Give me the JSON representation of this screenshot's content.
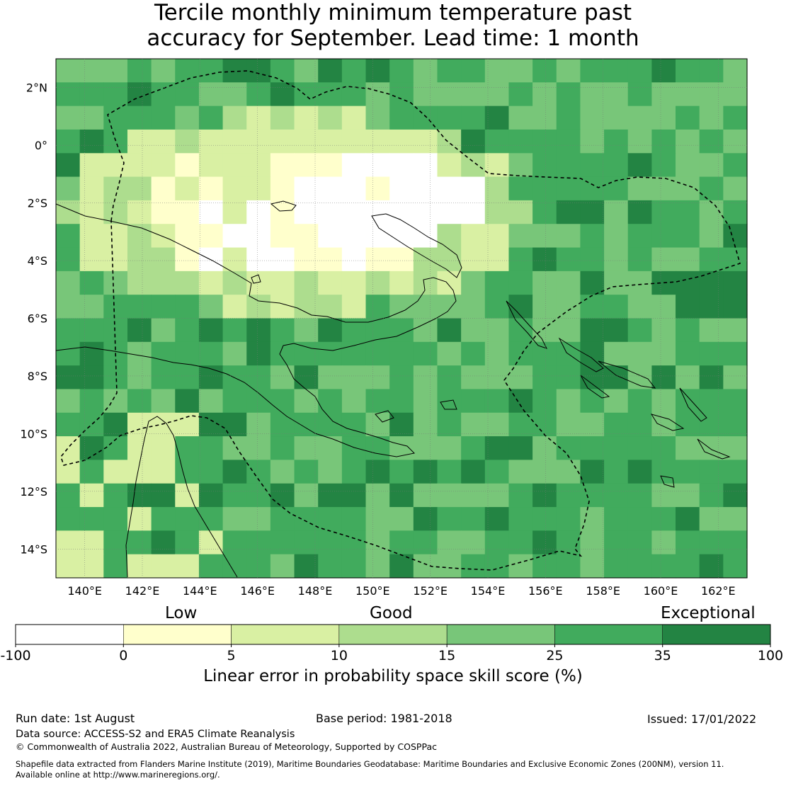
{
  "title": {
    "line1": "Tercile monthly minimum temperature past",
    "line2": "accuracy for September. Lead time: 1 month"
  },
  "map": {
    "lon_range": [
      139,
      163
    ],
    "lat_range": [
      -15,
      3
    ],
    "lon_ticks": [
      "140°E",
      "142°E",
      "144°E",
      "146°E",
      "148°E",
      "150°E",
      "152°E",
      "154°E",
      "156°E",
      "158°E",
      "160°E",
      "162°E"
    ],
    "lat_ticks": [
      "2°N",
      "0°",
      "2°S",
      "4°S",
      "6°S",
      "8°S",
      "10°S",
      "12°S",
      "14°S"
    ],
    "lon_tick_values": [
      140,
      142,
      144,
      146,
      148,
      150,
      152,
      154,
      156,
      158,
      160,
      162
    ],
    "lat_tick_values": [
      2,
      0,
      -2,
      -4,
      -6,
      -8,
      -10,
      -12,
      -14
    ]
  },
  "legend": {
    "categories": [
      "Low",
      "Good",
      "Exceptional"
    ],
    "boundaries": [
      "-100",
      "0",
      "5",
      "10",
      "15",
      "25",
      "35",
      "100"
    ],
    "colors": [
      "#ffffff",
      "#ffffcc",
      "#d9f0a3",
      "#addd8e",
      "#78c679",
      "#41ab5d",
      "#238443"
    ],
    "label": "Linear error in probability space skill score (%)"
  },
  "footer": {
    "run_date": "Run date: 1st August",
    "base_period": "Base period: 1981-2018",
    "issued": "Issued: 17/01/2022",
    "data_source": "Data source: ACCESS-S2 and ERA5 Climate Reanalysis",
    "copyright": "© Commonwealth of Australia 2022, Australian Bureau of Meteorology, Supported by COSPPac",
    "shapefile_line1": "Shapefile data extracted from Flanders Marine Institute (2019), Maritime Boundaries Geodatabase: Maritime Boundaries and Exclusive Economic Zones (200NM), version 11.",
    "shapefile_line2": "Available online at http://www.marineregions.org/."
  }
}
